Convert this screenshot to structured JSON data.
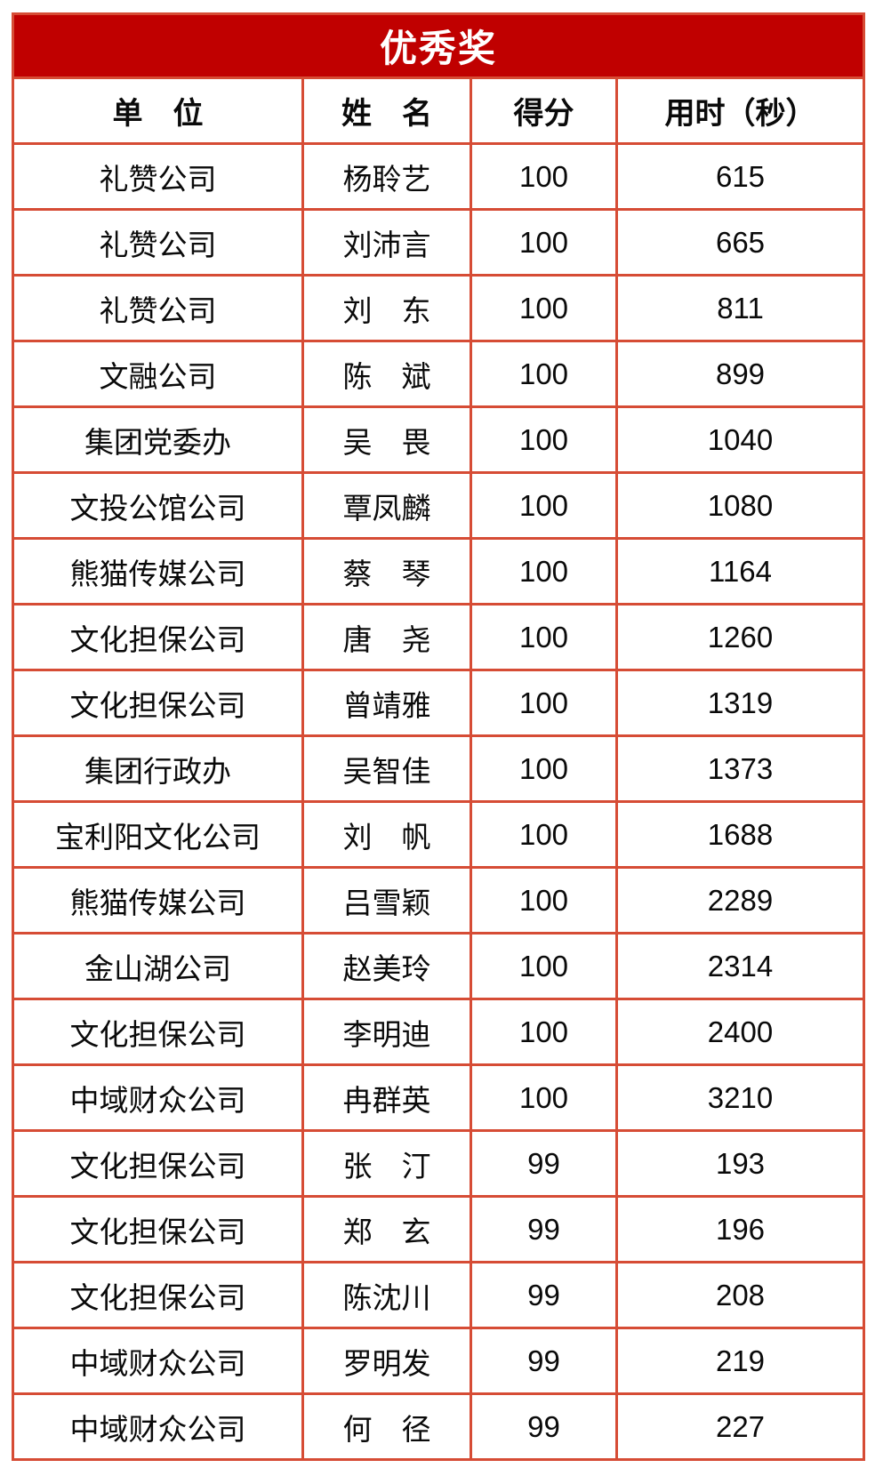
{
  "table": {
    "title": "优秀奖",
    "title_bg": "#C00000",
    "title_color": "#FFFFFF",
    "border_color": "#D64C35",
    "text_color": "#0A0A0A",
    "columns": [
      "单　位",
      "姓　名",
      "得分",
      "用时（秒）"
    ],
    "rows": [
      {
        "unit": "礼赞公司",
        "name": "杨聆艺",
        "score": "100",
        "time": "615"
      },
      {
        "unit": "礼赞公司",
        "name": "刘沛言",
        "score": "100",
        "time": "665"
      },
      {
        "unit": "礼赞公司",
        "name": "刘　东",
        "score": "100",
        "time": "811"
      },
      {
        "unit": "文融公司",
        "name": "陈　斌",
        "score": "100",
        "time": "899"
      },
      {
        "unit": "集团党委办",
        "name": "吴　畏",
        "score": "100",
        "time": "1040"
      },
      {
        "unit": "文投公馆公司",
        "name": "覃凤麟",
        "score": "100",
        "time": "1080"
      },
      {
        "unit": "熊猫传媒公司",
        "name": "蔡　琴",
        "score": "100",
        "time": "1164"
      },
      {
        "unit": "文化担保公司",
        "name": "唐　尧",
        "score": "100",
        "time": "1260"
      },
      {
        "unit": "文化担保公司",
        "name": "曾靖雅",
        "score": "100",
        "time": "1319"
      },
      {
        "unit": "集团行政办",
        "name": "吴智佳",
        "score": "100",
        "time": "1373"
      },
      {
        "unit": "宝利阳文化公司",
        "name": "刘　帆",
        "score": "100",
        "time": "1688"
      },
      {
        "unit": "熊猫传媒公司",
        "name": "吕雪颖",
        "score": "100",
        "time": "2289"
      },
      {
        "unit": "金山湖公司",
        "name": "赵美玲",
        "score": "100",
        "time": "2314"
      },
      {
        "unit": "文化担保公司",
        "name": "李明迪",
        "score": "100",
        "time": "2400"
      },
      {
        "unit": "中域财众公司",
        "name": "冉群英",
        "score": "100",
        "time": "3210"
      },
      {
        "unit": "文化担保公司",
        "name": "张　汀",
        "score": "99",
        "time": "193"
      },
      {
        "unit": "文化担保公司",
        "name": "郑　玄",
        "score": "99",
        "time": "196"
      },
      {
        "unit": "文化担保公司",
        "name": "陈沈川",
        "score": "99",
        "time": "208"
      },
      {
        "unit": "中域财众公司",
        "name": "罗明发",
        "score": "99",
        "time": "219"
      },
      {
        "unit": "中域财众公司",
        "name": "何　径",
        "score": "99",
        "time": "227"
      }
    ]
  }
}
